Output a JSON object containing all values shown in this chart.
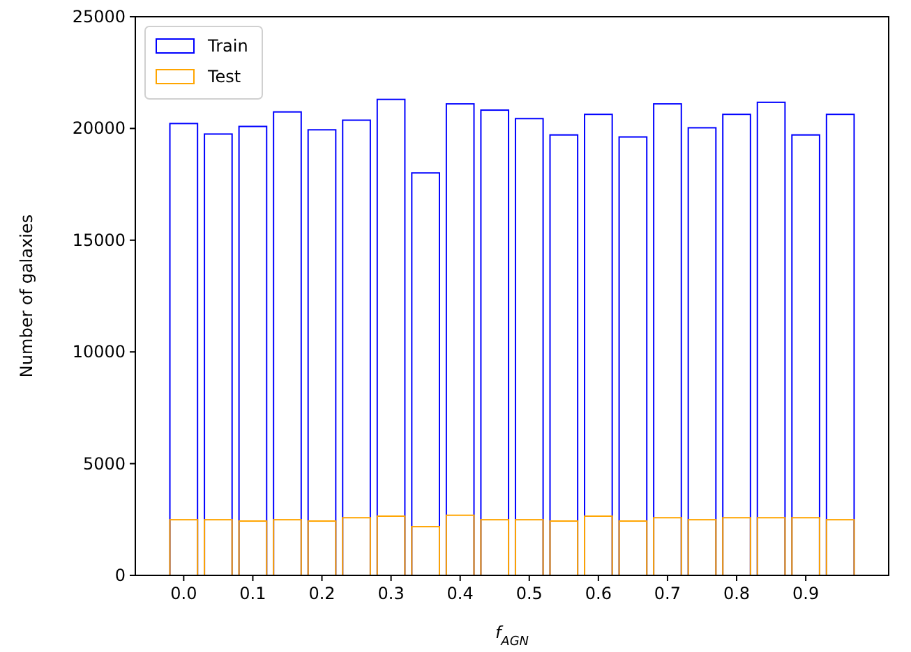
{
  "chart_data": {
    "type": "bar",
    "xlabel": "f$_{AGN}$",
    "ylabel": "Number of galaxies",
    "x": [
      0,
      0.05,
      0.1,
      0.15,
      0.2,
      0.25,
      0.3,
      0.35,
      0.4,
      0.45,
      0.5,
      0.55,
      0.6,
      0.65,
      0.7,
      0.75,
      0.8,
      0.85,
      0.9,
      0.95
    ],
    "series": [
      {
        "name": "Train",
        "color": "#0000ff",
        "values": [
          20220,
          19750,
          20090,
          20740,
          19940,
          20370,
          21300,
          18010,
          21100,
          20820,
          20440,
          19710,
          20630,
          19620,
          21100,
          20030,
          20630,
          21170,
          19710,
          20630
        ]
      },
      {
        "name": "Test",
        "color": "#ffa500",
        "values": [
          2490,
          2490,
          2430,
          2490,
          2430,
          2580,
          2650,
          2180,
          2690,
          2490,
          2490,
          2430,
          2650,
          2430,
          2580,
          2490,
          2580,
          2580,
          2580,
          2490
        ]
      }
    ],
    "xlim": [
      -0.07,
      1.02
    ],
    "xticks": [
      {
        "value": 0,
        "label": "0.0"
      },
      0.1,
      0.2,
      0.3,
      0.4,
      0.5,
      0.6,
      0.7,
      0.8,
      0.9
    ],
    "ylim": [
      0,
      25000
    ],
    "yticks": [
      0,
      5000,
      10000,
      15000,
      20000,
      25000
    ],
    "grid": false,
    "legend": "top left"
  }
}
